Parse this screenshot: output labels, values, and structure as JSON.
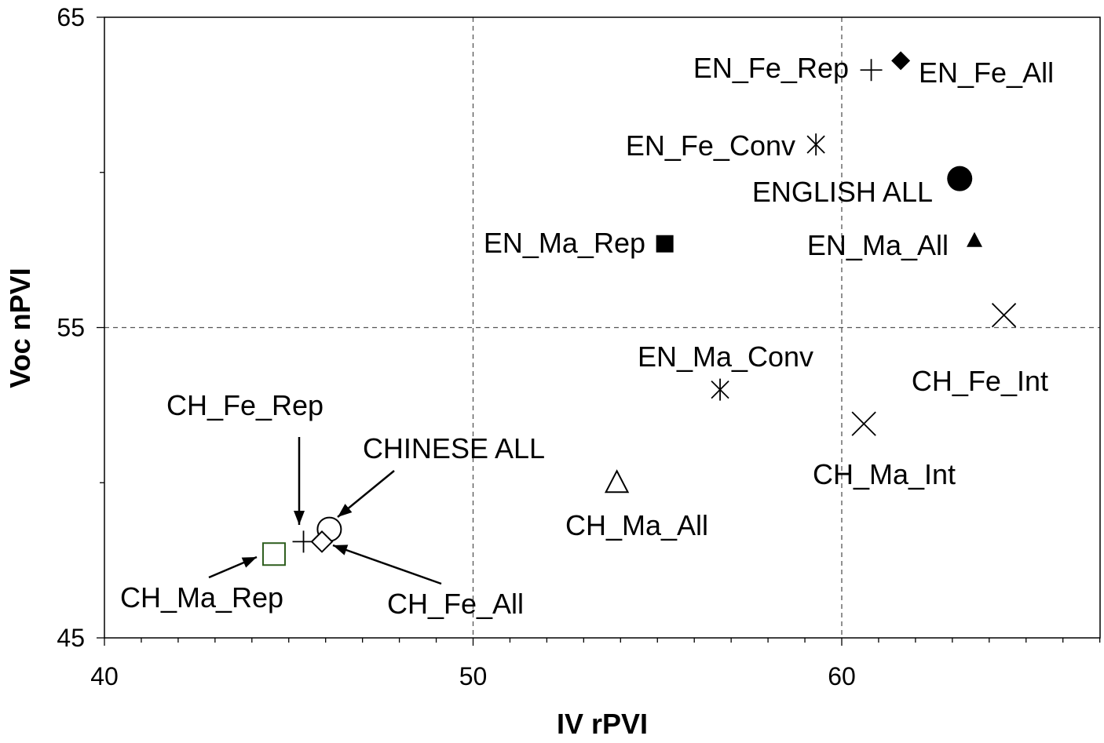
{
  "chart_data": {
    "type": "scatter",
    "xlabel": "IV rPVI",
    "ylabel": "Voc nPVI",
    "xlim": [
      40,
      67
    ],
    "ylim": [
      45,
      65
    ],
    "x_ticks": [
      40,
      50,
      60
    ],
    "y_ticks": [
      45,
      55,
      65
    ],
    "grid": "dashed lines at x=50, x=60 and y=55",
    "points": [
      {
        "name": "EN_Fe_All",
        "x": 61.6,
        "y": 63.6,
        "marker": "diamond-filled"
      },
      {
        "name": "EN_Fe_Rep",
        "x": 60.8,
        "y": 63.3,
        "marker": "plus"
      },
      {
        "name": "EN_Fe_Conv",
        "x": 59.3,
        "y": 60.9,
        "marker": "asterisk"
      },
      {
        "name": "ENGLISH ALL",
        "x": 63.2,
        "y": 59.8,
        "marker": "circle-filled"
      },
      {
        "name": "EN_Ma_Rep",
        "x": 55.2,
        "y": 57.7,
        "marker": "square-filled"
      },
      {
        "name": "EN_Ma_All",
        "x": 63.6,
        "y": 57.8,
        "marker": "triangle-filled"
      },
      {
        "name": "CH_Fe_Int",
        "x": 64.4,
        "y": 55.4,
        "marker": "x"
      },
      {
        "name": "EN_Ma_Conv",
        "x": 56.7,
        "y": 53.0,
        "marker": "asterisk"
      },
      {
        "name": "CH_Ma_Int",
        "x": 60.6,
        "y": 51.9,
        "marker": "x"
      },
      {
        "name": "CH_Ma_All",
        "x": 53.9,
        "y": 50.0,
        "marker": "triangle-open"
      },
      {
        "name": "CHINESE ALL",
        "x": 46.1,
        "y": 48.5,
        "marker": "circle-open"
      },
      {
        "name": "CH_Fe_Rep",
        "x": 45.4,
        "y": 48.1,
        "marker": "plus"
      },
      {
        "name": "CH_Fe_All",
        "x": 45.9,
        "y": 48.1,
        "marker": "diamond-open"
      },
      {
        "name": "CH_Ma_Rep",
        "x": 44.6,
        "y": 47.7,
        "marker": "square-open-green"
      }
    ]
  },
  "colors": {
    "marker": "#000000",
    "ch_ma_rep_marker": "#2e5e1e",
    "grid": "#555555"
  }
}
